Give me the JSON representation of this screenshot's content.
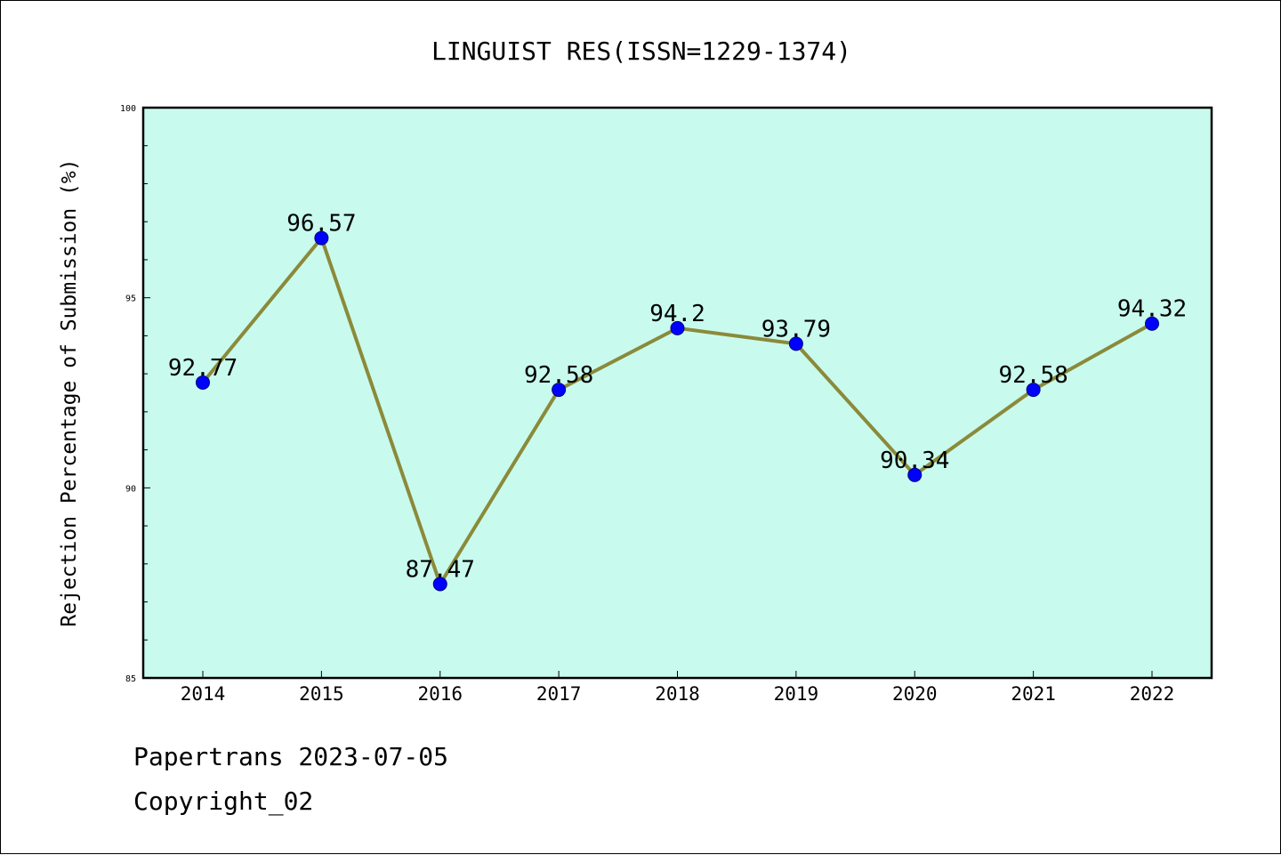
{
  "chart_data": {
    "type": "line",
    "title": "LINGUIST RES(ISSN=1229-1374)",
    "xlabel": "",
    "ylabel": "Rejection Percentage of Submission (%)",
    "categories": [
      "2014",
      "2015",
      "2016",
      "2017",
      "2018",
      "2019",
      "2020",
      "2021",
      "2022"
    ],
    "values": [
      92.77,
      96.57,
      87.47,
      92.58,
      94.2,
      93.79,
      90.34,
      92.58,
      94.32
    ],
    "data_labels": [
      "92.77",
      "96.57",
      "87.47",
      "92.58",
      "94.2",
      "93.79",
      "90.34",
      "92.58",
      "94.32"
    ],
    "ylim": [
      85,
      100
    ],
    "yticks": [
      "85",
      "90",
      "95",
      "100"
    ],
    "grid": false,
    "colors": {
      "background": "#c8fbee",
      "line": "#8b8a3a",
      "marker": "#0000ff"
    }
  },
  "footer": {
    "line1": "Papertrans 2023-07-05",
    "line2": "Copyright_02"
  }
}
